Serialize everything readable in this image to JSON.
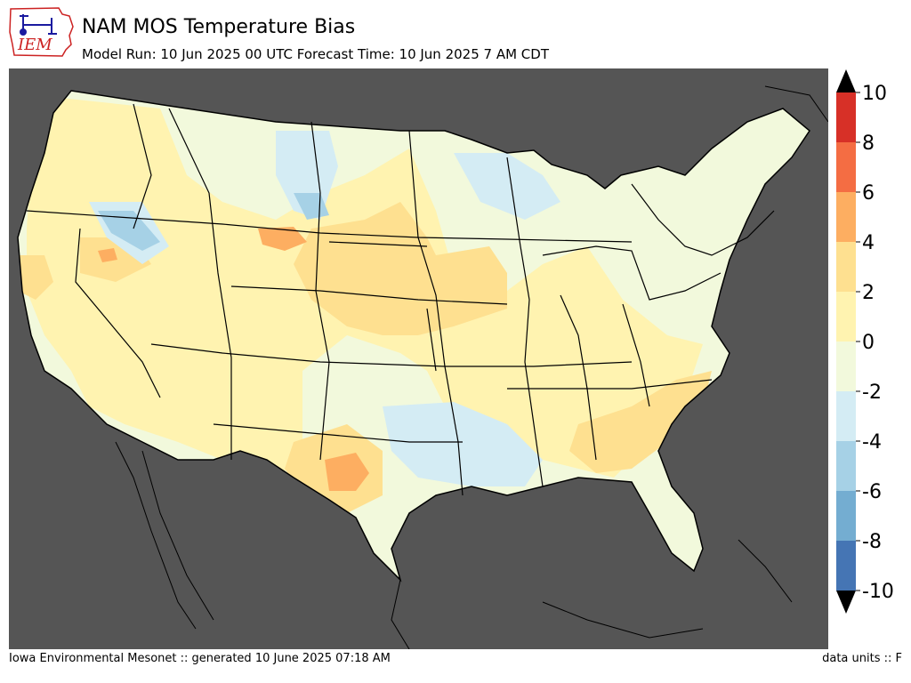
{
  "header": {
    "title": "NAM MOS Temperature Bias",
    "subtitle": "Model Run: 10 Jun 2025 00 UTC Forecast Time: 10 Jun 2025 7 AM CDT"
  },
  "logo": {
    "text": "IEM",
    "color": "#cc2222",
    "accent": "#1a1aa0"
  },
  "map": {
    "ocean_color": "#555555",
    "land_color": "#f2f9dc",
    "border_color": "#000000"
  },
  "colorbar": {
    "min": -10,
    "max": 10,
    "extend": "both",
    "tick_labels": [
      "10",
      "8",
      "6",
      "4",
      "2",
      "0",
      "-2",
      "-4",
      "-6",
      "-8",
      "-10"
    ],
    "bins": [
      {
        "range": [
          8,
          10
        ],
        "color": "#d73027"
      },
      {
        "range": [
          6,
          8
        ],
        "color": "#f46d43"
      },
      {
        "range": [
          4,
          6
        ],
        "color": "#fdae61"
      },
      {
        "range": [
          2,
          4
        ],
        "color": "#fee090"
      },
      {
        "range": [
          0,
          2
        ],
        "color": "#fff3b0"
      },
      {
        "range": [
          -2,
          0
        ],
        "color": "#f2f9dc"
      },
      {
        "range": [
          -4,
          -2
        ],
        "color": "#d4ecf4"
      },
      {
        "range": [
          -6,
          -4
        ],
        "color": "#a6d1e6"
      },
      {
        "range": [
          -8,
          -6
        ],
        "color": "#74add1"
      },
      {
        "range": [
          -10,
          -8
        ],
        "color": "#4575b4"
      }
    ],
    "over_color": "#000000",
    "under_color": "#000000"
  },
  "footer": {
    "left": "Iowa Environmental Mesonet :: generated 10 June 2025 07:18 AM",
    "right": "data units :: F"
  }
}
